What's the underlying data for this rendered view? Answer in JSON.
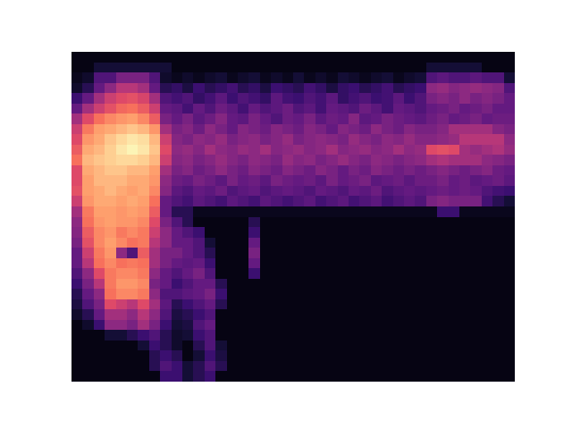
{
  "chart_data": {
    "type": "heatmap",
    "tick_labels": false,
    "zlim": [
      0,
      100
    ],
    "cells": [
      [
        3,
        3,
        3,
        3,
        3,
        3,
        3,
        3,
        3,
        3,
        3,
        3,
        3,
        3,
        3,
        3,
        3,
        3,
        3,
        3,
        3,
        3,
        3,
        3,
        3,
        3,
        3,
        3,
        3,
        3,
        3,
        3,
        3,
        3,
        3,
        3,
        3,
        3,
        3,
        3
      ],
      [
        3,
        3,
        10,
        10,
        10,
        10,
        10,
        10,
        10,
        3,
        3,
        3,
        3,
        3,
        3,
        3,
        3,
        3,
        3,
        3,
        3,
        3,
        3,
        3,
        3,
        3,
        3,
        3,
        3,
        3,
        3,
        3,
        10,
        10,
        10,
        10,
        10,
        3,
        3,
        3
      ],
      [
        5,
        8,
        25,
        25,
        35,
        35,
        35,
        25,
        8,
        5,
        8,
        5,
        8,
        10,
        5,
        8,
        10,
        5,
        8,
        5,
        10,
        5,
        8,
        5,
        10,
        8,
        5,
        8,
        10,
        5,
        8,
        10,
        25,
        28,
        25,
        25,
        28,
        25,
        25,
        10
      ],
      [
        8,
        15,
        30,
        40,
        50,
        50,
        45,
        30,
        15,
        18,
        12,
        20,
        15,
        18,
        22,
        15,
        18,
        12,
        20,
        18,
        15,
        22,
        18,
        12,
        18,
        20,
        15,
        18,
        22,
        15,
        18,
        20,
        40,
        42,
        38,
        40,
        42,
        40,
        38,
        25
      ],
      [
        20,
        30,
        45,
        55,
        60,
        62,
        58,
        45,
        25,
        22,
        25,
        18,
        22,
        28,
        20,
        25,
        22,
        18,
        28,
        22,
        20,
        25,
        22,
        28,
        18,
        22,
        25,
        20,
        22,
        28,
        20,
        25,
        35,
        38,
        35,
        40,
        35,
        38,
        35,
        30
      ],
      [
        30,
        45,
        55,
        62,
        68,
        70,
        65,
        55,
        30,
        28,
        22,
        30,
        25,
        32,
        28,
        22,
        30,
        25,
        28,
        32,
        25,
        28,
        22,
        30,
        28,
        25,
        32,
        28,
        22,
        30,
        28,
        25,
        30,
        32,
        35,
        30,
        32,
        35,
        30,
        30
      ],
      [
        45,
        60,
        70,
        75,
        78,
        80,
        75,
        65,
        35,
        30,
        35,
        28,
        32,
        38,
        30,
        28,
        35,
        30,
        25,
        32,
        30,
        35,
        28,
        32,
        30,
        38,
        28,
        30,
        35,
        32,
        30,
        28,
        32,
        35,
        30,
        32,
        35,
        30,
        32,
        32
      ],
      [
        55,
        72,
        80,
        82,
        85,
        88,
        85,
        78,
        45,
        35,
        38,
        32,
        40,
        35,
        30,
        38,
        35,
        32,
        38,
        35,
        32,
        38,
        35,
        30,
        38,
        35,
        32,
        40,
        35,
        32,
        38,
        35,
        35,
        38,
        45,
        45,
        45,
        45,
        38,
        35
      ],
      [
        60,
        78,
        82,
        88,
        92,
        95,
        93,
        85,
        55,
        38,
        35,
        40,
        38,
        42,
        35,
        38,
        40,
        35,
        38,
        42,
        35,
        38,
        40,
        38,
        35,
        42,
        38,
        35,
        40,
        38,
        42,
        38,
        38,
        40,
        42,
        50,
        50,
        50,
        50,
        40
      ],
      [
        65,
        82,
        85,
        90,
        95,
        98,
        95,
        88,
        60,
        40,
        42,
        38,
        45,
        40,
        38,
        42,
        40,
        45,
        38,
        40,
        42,
        38,
        40,
        45,
        38,
        40,
        42,
        38,
        40,
        45,
        40,
        42,
        60,
        62,
        60,
        45,
        42,
        45,
        48,
        42
      ],
      [
        70,
        85,
        88,
        90,
        92,
        92,
        90,
        85,
        55,
        38,
        40,
        35,
        38,
        42,
        38,
        35,
        40,
        38,
        35,
        42,
        38,
        40,
        35,
        38,
        42,
        38,
        35,
        40,
        38,
        35,
        38,
        40,
        45,
        48,
        45,
        45,
        45,
        40,
        38,
        35
      ],
      [
        60,
        82,
        85,
        88,
        88,
        85,
        85,
        80,
        45,
        35,
        38,
        32,
        35,
        40,
        35,
        32,
        38,
        35,
        32,
        38,
        35,
        32,
        38,
        35,
        30,
        35,
        32,
        38,
        35,
        32,
        35,
        32,
        35,
        38,
        35,
        32,
        35,
        38,
        32,
        30
      ],
      [
        60,
        80,
        85,
        85,
        85,
        82,
        82,
        78,
        40,
        32,
        30,
        35,
        32,
        28,
        35,
        30,
        32,
        28,
        35,
        32,
        30,
        32,
        28,
        35,
        30,
        32,
        35,
        28,
        30,
        32,
        28,
        32,
        32,
        35,
        30,
        32,
        28,
        30,
        32,
        28
      ],
      [
        62,
        80,
        82,
        85,
        82,
        80,
        82,
        75,
        38,
        28,
        25,
        30,
        28,
        32,
        25,
        28,
        30,
        25,
        28,
        30,
        28,
        25,
        30,
        28,
        25,
        30,
        28,
        32,
        25,
        28,
        30,
        28,
        30,
        32,
        30,
        32,
        30,
        25,
        22,
        20
      ],
      [
        55,
        78,
        82,
        82,
        80,
        82,
        80,
        70,
        30,
        25,
        22,
        28,
        25,
        22,
        28,
        25,
        22,
        28,
        25,
        22,
        25,
        28,
        22,
        25,
        28,
        22,
        25,
        28,
        22,
        25,
        28,
        25,
        35,
        38,
        35,
        35,
        35,
        22,
        15,
        10
      ],
      [
        45,
        72,
        80,
        80,
        78,
        80,
        78,
        65,
        30,
        15,
        15,
        5,
        5,
        5,
        5,
        5,
        5,
        5,
        5,
        5,
        5,
        5,
        5,
        5,
        5,
        5,
        5,
        5,
        5,
        5,
        5,
        5,
        5,
        20,
        20,
        5,
        5,
        5,
        5,
        5
      ],
      [
        40,
        70,
        78,
        80,
        78,
        78,
        75,
        60,
        35,
        25,
        15,
        3,
        3,
        3,
        3,
        3,
        15,
        3,
        3,
        3,
        3,
        3,
        3,
        3,
        3,
        3,
        3,
        3,
        3,
        3,
        3,
        3,
        3,
        3,
        3,
        3,
        3,
        3,
        3,
        3
      ],
      [
        38,
        65,
        75,
        78,
        72,
        75,
        72,
        55,
        40,
        30,
        25,
        20,
        3,
        3,
        3,
        3,
        20,
        3,
        3,
        3,
        3,
        3,
        3,
        3,
        3,
        3,
        3,
        3,
        3,
        3,
        3,
        3,
        3,
        3,
        3,
        3,
        3,
        3,
        3,
        3
      ],
      [
        35,
        62,
        75,
        80,
        75,
        70,
        72,
        50,
        40,
        30,
        30,
        25,
        10,
        3,
        3,
        3,
        30,
        3,
        3,
        3,
        3,
        3,
        3,
        3,
        3,
        3,
        3,
        3,
        3,
        3,
        3,
        3,
        3,
        3,
        3,
        3,
        3,
        3,
        3,
        3
      ],
      [
        30,
        55,
        72,
        78,
        40,
        25,
        65,
        45,
        35,
        35,
        30,
        25,
        15,
        3,
        3,
        3,
        35,
        3,
        3,
        3,
        3,
        3,
        3,
        3,
        3,
        3,
        3,
        3,
        3,
        3,
        3,
        3,
        3,
        3,
        3,
        3,
        3,
        3,
        3,
        3
      ],
      [
        30,
        50,
        70,
        75,
        70,
        72,
        70,
        45,
        35,
        30,
        28,
        30,
        20,
        3,
        3,
        3,
        30,
        3,
        3,
        3,
        3,
        3,
        3,
        3,
        3,
        3,
        3,
        3,
        3,
        3,
        3,
        3,
        3,
        3,
        3,
        3,
        3,
        3,
        3,
        3
      ],
      [
        25,
        40,
        60,
        72,
        75,
        75,
        72,
        40,
        30,
        25,
        30,
        35,
        25,
        3,
        3,
        3,
        20,
        3,
        3,
        3,
        3,
        3,
        3,
        3,
        3,
        3,
        3,
        3,
        3,
        3,
        3,
        3,
        3,
        3,
        3,
        3,
        3,
        3,
        3,
        3
      ],
      [
        20,
        35,
        50,
        72,
        78,
        78,
        75,
        35,
        30,
        20,
        25,
        30,
        30,
        15,
        3,
        3,
        3,
        3,
        3,
        3,
        3,
        3,
        3,
        3,
        3,
        3,
        3,
        3,
        3,
        3,
        3,
        3,
        3,
        3,
        3,
        3,
        3,
        3,
        3,
        3
      ],
      [
        15,
        30,
        40,
        70,
        75,
        75,
        72,
        40,
        25,
        25,
        28,
        30,
        35,
        20,
        3,
        3,
        3,
        3,
        3,
        3,
        3,
        3,
        3,
        3,
        3,
        3,
        3,
        3,
        3,
        3,
        3,
        3,
        3,
        3,
        3,
        3,
        3,
        3,
        3,
        3
      ],
      [
        12,
        25,
        35,
        60,
        55,
        50,
        60,
        45,
        28,
        15,
        20,
        25,
        30,
        15,
        3,
        3,
        3,
        3,
        3,
        3,
        3,
        3,
        3,
        3,
        3,
        3,
        3,
        3,
        3,
        3,
        3,
        3,
        3,
        3,
        3,
        3,
        3,
        3,
        3,
        3
      ],
      [
        8,
        15,
        30,
        45,
        45,
        40,
        50,
        40,
        25,
        12,
        15,
        20,
        25,
        3,
        3,
        3,
        3,
        3,
        3,
        3,
        3,
        3,
        3,
        3,
        3,
        3,
        3,
        3,
        3,
        3,
        3,
        3,
        3,
        3,
        3,
        3,
        3,
        3,
        3,
        3
      ],
      [
        3,
        8,
        20,
        40,
        40,
        35,
        45,
        35,
        20,
        10,
        12,
        25,
        30,
        3,
        3,
        3,
        3,
        3,
        3,
        3,
        3,
        3,
        3,
        3,
        3,
        3,
        3,
        3,
        3,
        3,
        3,
        3,
        3,
        3,
        3,
        3,
        3,
        3,
        3,
        3
      ],
      [
        3,
        3,
        3,
        10,
        10,
        15,
        20,
        25,
        15,
        8,
        10,
        20,
        25,
        3,
        3,
        3,
        3,
        3,
        3,
        3,
        3,
        3,
        3,
        3,
        3,
        3,
        3,
        3,
        3,
        3,
        3,
        3,
        3,
        3,
        3,
        3,
        3,
        3,
        3,
        3
      ],
      [
        3,
        3,
        3,
        3,
        3,
        3,
        10,
        20,
        15,
        8,
        3,
        15,
        25,
        10,
        3,
        3,
        3,
        3,
        3,
        3,
        3,
        3,
        3,
        3,
        3,
        3,
        3,
        3,
        3,
        3,
        3,
        3,
        3,
        3,
        3,
        3,
        3,
        3,
        3,
        3
      ],
      [
        3,
        3,
        3,
        3,
        3,
        3,
        3,
        15,
        20,
        15,
        3,
        10,
        20,
        12,
        3,
        3,
        3,
        3,
        3,
        3,
        3,
        3,
        3,
        3,
        3,
        3,
        3,
        3,
        3,
        3,
        3,
        3,
        3,
        3,
        3,
        3,
        3,
        3,
        3,
        3
      ],
      [
        3,
        3,
        3,
        3,
        3,
        3,
        3,
        15,
        25,
        20,
        10,
        15,
        25,
        15,
        3,
        3,
        3,
        3,
        3,
        3,
        3,
        3,
        3,
        3,
        3,
        3,
        3,
        3,
        3,
        3,
        3,
        3,
        3,
        3,
        3,
        3,
        3,
        3,
        3,
        3
      ],
      [
        3,
        3,
        3,
        3,
        3,
        3,
        3,
        3,
        20,
        20,
        10,
        15,
        20,
        3,
        3,
        3,
        3,
        3,
        3,
        3,
        3,
        3,
        3,
        3,
        3,
        3,
        3,
        3,
        3,
        3,
        3,
        3,
        3,
        3,
        3,
        3,
        3,
        3,
        3,
        3
      ]
    ]
  }
}
